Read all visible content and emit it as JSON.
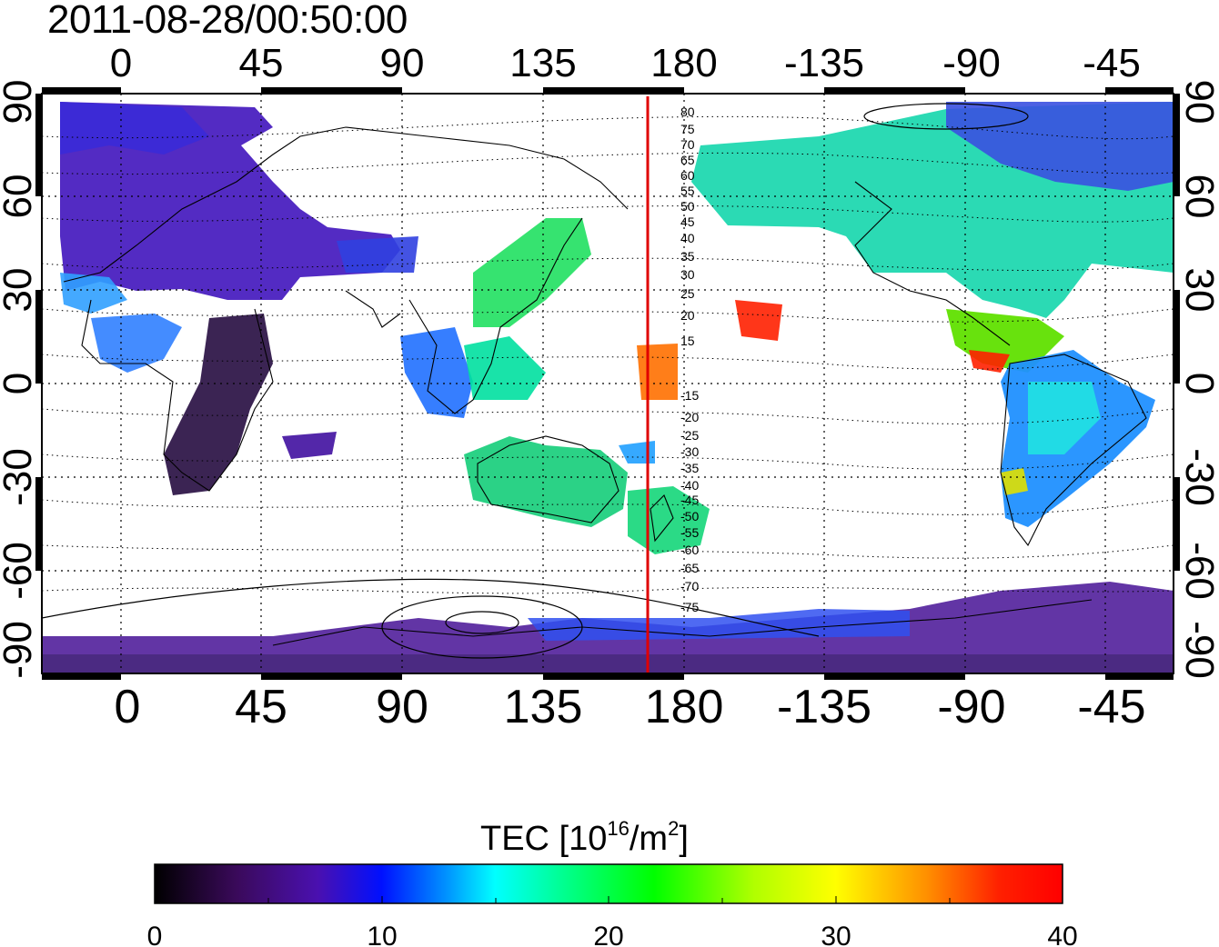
{
  "timestamp": "2011-08-28/00:50:00",
  "map": {
    "top_lon_ticks": [
      "0",
      "45",
      "90",
      "135",
      "180",
      "-135",
      "-90",
      "-45"
    ],
    "bottom_lon_ticks": [
      "0",
      "45",
      "90",
      "135",
      "180",
      "-135",
      "-90",
      "-45"
    ],
    "lat_ticks": [
      "90",
      "60",
      "30",
      "0",
      "-30",
      "-60",
      "-90"
    ],
    "geomag_labels_north": [
      "80",
      "75",
      "70",
      "65",
      "60",
      "55",
      "50",
      "45",
      "40",
      "35",
      "30",
      "25",
      "20",
      "15"
    ],
    "geomag_labels_south": [
      "-15",
      "-20",
      "-25",
      "-30",
      "-35",
      "-40",
      "-45",
      "-50",
      "-55",
      "-60",
      "-65",
      "-70",
      "-75"
    ],
    "meridian_line_color": "#e00000"
  },
  "colorbar": {
    "title_prefix": "TEC  [10",
    "title_exp": "16",
    "title_mid": "/m",
    "title_exp2": "2",
    "title_suffix": "]",
    "ticks": [
      "0",
      "10",
      "20",
      "30",
      "40"
    ],
    "range": [
      0,
      40
    ],
    "colormap": [
      "#000000",
      "#3a0a5a",
      "#4a10b0",
      "#0010ff",
      "#0090ff",
      "#00ffff",
      "#00ff90",
      "#00ff00",
      "#b0ff00",
      "#ffff00",
      "#ff9000",
      "#ff0000"
    ]
  }
}
